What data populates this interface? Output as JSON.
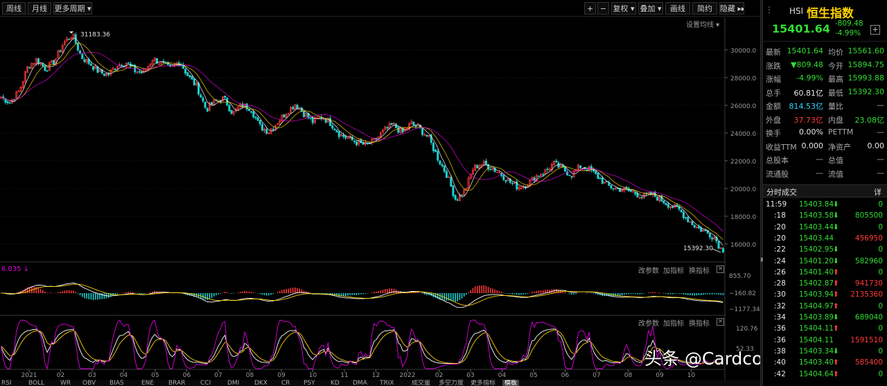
{
  "toolbar": {
    "left_buttons": [
      {
        "name": "week-button",
        "label": "周线"
      },
      {
        "name": "month-button",
        "label": "月线"
      },
      {
        "name": "more-period-button",
        "label": "更多周期 ▾"
      }
    ],
    "right_buttons": [
      {
        "name": "zoom-in-button",
        "label": "+"
      },
      {
        "name": "zoom-out-button",
        "label": "−"
      },
      {
        "name": "fuquan-button",
        "label": "复权 ▾"
      },
      {
        "name": "overlay-button",
        "label": "叠加 ▾"
      },
      {
        "name": "draw-line-button",
        "label": "画线"
      },
      {
        "name": "simple-button",
        "label": "简约"
      },
      {
        "name": "hide-button",
        "label": "隐藏 ▸▸"
      }
    ]
  },
  "main_chart": {
    "settings_label": "设置均线 ▾",
    "high_label": "31183.36",
    "low_label": "15392.30",
    "y_ticks": [
      "30000.0",
      "28000.0",
      "26000.0",
      "24000.0",
      "22000.0",
      "20000.0",
      "18000.0",
      "16000.0"
    ]
  },
  "macd_panel": {
    "value_label": "6.035 ↓",
    "buttons": [
      "改参数",
      "加指标",
      "换指标"
    ],
    "y_ticks": [
      "855.70",
      "−160.82",
      "−1177.34"
    ]
  },
  "kdj_panel": {
    "buttons": [
      "改参数",
      "加指标",
      "换指标"
    ],
    "y_ticks": [
      "120.76",
      "52.33"
    ]
  },
  "x_axis": {
    "labels": [
      {
        "t": "2021",
        "k": 0
      },
      {
        "t": "02",
        "k": 1
      },
      {
        "t": "03",
        "k": 2
      },
      {
        "t": "04",
        "k": 3
      },
      {
        "t": "05",
        "k": 4
      },
      {
        "t": "06",
        "k": 5
      },
      {
        "t": "07",
        "k": 6
      },
      {
        "t": "08",
        "k": 7
      },
      {
        "t": "09",
        "k": 8
      },
      {
        "t": "10",
        "k": 9
      },
      {
        "t": "11",
        "k": 10
      },
      {
        "t": "12",
        "k": 11
      },
      {
        "t": "2022",
        "k": 12
      },
      {
        "t": "02",
        "k": 13
      },
      {
        "t": "03",
        "k": 14
      },
      {
        "t": "04",
        "k": 15
      },
      {
        "t": "05",
        "k": 16
      },
      {
        "t": "06",
        "k": 17
      },
      {
        "t": "07",
        "k": 18
      },
      {
        "t": "08",
        "k": 19
      },
      {
        "t": "09",
        "k": 20
      },
      {
        "t": "10",
        "k": 21
      }
    ]
  },
  "indicator_tabs": [
    "RSI",
    "BOLL",
    "WR",
    "OBV",
    "BIAS",
    "ENE",
    "BRAR",
    "CCI",
    "DMI",
    "DKX",
    "CR",
    "PSY",
    "KD",
    "DMA",
    "TRIX",
    "成交量",
    "多空力度",
    "更多指标",
    "模板"
  ],
  "watermark": "头条 @Cardcounters",
  "quote": {
    "code": "HSI",
    "name": "恒生指数",
    "price": "15401.64",
    "change": "-809.48",
    "change_pct": "-4.99%",
    "add_icon": "+",
    "rows": [
      {
        "l1": "最新",
        "v1": "15401.64",
        "c1": "g",
        "l2": "均价",
        "v2": "15561.60",
        "c2": "g"
      },
      {
        "l1": "涨跌",
        "v1": "▼809.48",
        "c1": "g",
        "l2": "今开",
        "v2": "15894.75",
        "c2": "g"
      },
      {
        "l1": "涨幅",
        "v1": "-4.99%",
        "c1": "g",
        "l2": "最高",
        "v2": "15993.88",
        "c2": "g"
      },
      {
        "l1": "总手",
        "v1": "60.81亿",
        "c1": "w",
        "l2": "最低",
        "v2": "15392.30",
        "c2": "g"
      },
      {
        "l1": "金额",
        "v1": "814.53亿",
        "c1": "c",
        "l2": "量比",
        "v2": "—",
        "c2": "d"
      },
      {
        "l1": "外盘",
        "v1": "37.73亿",
        "c1": "r",
        "l2": "内盘",
        "v2": "23.08亿",
        "c2": "g"
      },
      {
        "l1": "换手",
        "v1": "0.00%",
        "c1": "w",
        "l2": "PETTM",
        "v2": "—",
        "c2": "d"
      },
      {
        "l1": "收益TTM",
        "v1": "0.000",
        "c1": "w",
        "l2": "净资产",
        "v2": "0.00",
        "c2": "w"
      },
      {
        "l1": "总股本",
        "v1": "—",
        "c1": "d",
        "l2": "总值",
        "v2": "—",
        "c2": "d"
      },
      {
        "l1": "流通股",
        "v1": "—",
        "c1": "d",
        "l2": "流值",
        "v2": "—",
        "c2": "d"
      }
    ]
  },
  "ticks_panel": {
    "title": "分时成交",
    "detail_label": "详",
    "rows": [
      {
        "time": "11:59",
        "price": "15403.84",
        "arrow": "⬇",
        "dir": "g",
        "vol": "0",
        "vc": "g"
      },
      {
        "time": ":18",
        "price": "15403.58",
        "arrow": "⬇",
        "dir": "g",
        "vol": "805500",
        "vc": "g"
      },
      {
        "time": ":20",
        "price": "15403.44",
        "arrow": "⬇",
        "dir": "g",
        "vol": "0",
        "vc": "g"
      },
      {
        "time": ":20",
        "price": "15403.44",
        "arrow": "",
        "dir": "g",
        "vol": "456950",
        "vc": "r"
      },
      {
        "time": ":22",
        "price": "15402.95",
        "arrow": "⬇",
        "dir": "g",
        "vol": "0",
        "vc": "g"
      },
      {
        "time": ":24",
        "price": "15401.20",
        "arrow": "⬇",
        "dir": "g",
        "vol": "582960",
        "vc": "g"
      },
      {
        "time": ":26",
        "price": "15401.40",
        "arrow": "⬆",
        "dir": "r",
        "vol": "0",
        "vc": "g"
      },
      {
        "time": ":28",
        "price": "15402.87",
        "arrow": "⬆",
        "dir": "r",
        "vol": "941730",
        "vc": "r"
      },
      {
        "time": ":30",
        "price": "15403.94",
        "arrow": "⬆",
        "dir": "r",
        "vol": "2135360",
        "vc": "r"
      },
      {
        "time": ":32",
        "price": "15404.97",
        "arrow": "⬆",
        "dir": "r",
        "vol": "0",
        "vc": "g"
      },
      {
        "time": ":34",
        "price": "15403.89",
        "arrow": "⬇",
        "dir": "g",
        "vol": "689040",
        "vc": "g"
      },
      {
        "time": ":36",
        "price": "15404.11",
        "arrow": "⬆",
        "dir": "r",
        "vol": "0",
        "vc": "g"
      },
      {
        "time": ":36",
        "price": "15404.11",
        "arrow": "",
        "dir": "g",
        "vol": "1591510",
        "vc": "r"
      },
      {
        "time": ":38",
        "price": "15403.34",
        "arrow": "⬇",
        "dir": "g",
        "vol": "0",
        "vc": "g"
      },
      {
        "time": ":40",
        "price": "15403.40",
        "arrow": "⬆",
        "dir": "r",
        "vol": "585400",
        "vc": "r"
      },
      {
        "time": ":42",
        "price": "15404.64",
        "arrow": "⬆",
        "dir": "r",
        "vol": "0",
        "vc": "g"
      }
    ]
  },
  "chart_data": {
    "type": "candlestick",
    "title": "",
    "period": "daily",
    "x_range": [
      "2021-01",
      "2022-10"
    ],
    "ylim": [
      15000,
      31500
    ],
    "high": 31183.36,
    "low": 15392.3,
    "last": 15401.64,
    "colors": {
      "up": "#ff3b3b",
      "down": "#21d0d0",
      "ma_white": "#ffffff",
      "ma_yellow": "#ffd200",
      "ma_magenta": "#e000e0"
    },
    "approx_close_path": [
      [
        0,
        26600
      ],
      [
        1,
        26200
      ],
      [
        2,
        27000
      ],
      [
        3,
        28800
      ],
      [
        4,
        29300
      ],
      [
        5,
        28600
      ],
      [
        6,
        29200
      ],
      [
        7,
        30500
      ],
      [
        8,
        31100
      ],
      [
        9,
        29500
      ],
      [
        10,
        29000
      ],
      [
        11,
        28400
      ],
      [
        12,
        28200
      ],
      [
        13,
        28900
      ],
      [
        14,
        29100
      ],
      [
        15,
        28500
      ],
      [
        16,
        28300
      ],
      [
        17,
        29400
      ],
      [
        18,
        29000
      ],
      [
        19,
        28600
      ],
      [
        20,
        29200
      ],
      [
        21,
        28100
      ],
      [
        22,
        27300
      ],
      [
        23,
        25700
      ],
      [
        24,
        26300
      ],
      [
        25,
        26500
      ],
      [
        26,
        25400
      ],
      [
        27,
        26000
      ],
      [
        28,
        25800
      ],
      [
        29,
        24500
      ],
      [
        30,
        24100
      ],
      [
        31,
        24800
      ],
      [
        32,
        25500
      ],
      [
        33,
        26100
      ],
      [
        34,
        25400
      ],
      [
        35,
        24800
      ],
      [
        36,
        25200
      ],
      [
        37,
        24700
      ],
      [
        38,
        23900
      ],
      [
        39,
        23600
      ],
      [
        40,
        23300
      ],
      [
        41,
        23100
      ],
      [
        42,
        23500
      ],
      [
        43,
        24200
      ],
      [
        44,
        24600
      ],
      [
        45,
        24000
      ],
      [
        46,
        24700
      ],
      [
        47,
        24300
      ],
      [
        48,
        23600
      ],
      [
        49,
        22200
      ],
      [
        50,
        21000
      ],
      [
        51,
        19200
      ],
      [
        52,
        19800
      ],
      [
        53,
        21500
      ],
      [
        54,
        21800
      ],
      [
        55,
        21500
      ],
      [
        56,
        21100
      ],
      [
        57,
        20500
      ],
      [
        58,
        20100
      ],
      [
        59,
        20300
      ],
      [
        60,
        20900
      ],
      [
        61,
        21200
      ],
      [
        62,
        21800
      ],
      [
        63,
        21400
      ],
      [
        64,
        21000
      ],
      [
        65,
        21600
      ],
      [
        66,
        21400
      ],
      [
        67,
        20800
      ],
      [
        68,
        20200
      ],
      [
        69,
        20000
      ],
      [
        70,
        19900
      ],
      [
        71,
        19700
      ],
      [
        72,
        19400
      ],
      [
        73,
        19600
      ],
      [
        74,
        19200
      ],
      [
        75,
        18800
      ],
      [
        76,
        18500
      ],
      [
        77,
        17800
      ],
      [
        78,
        17200
      ],
      [
        79,
        16900
      ],
      [
        80,
        16500
      ],
      [
        81,
        15400
      ]
    ]
  }
}
